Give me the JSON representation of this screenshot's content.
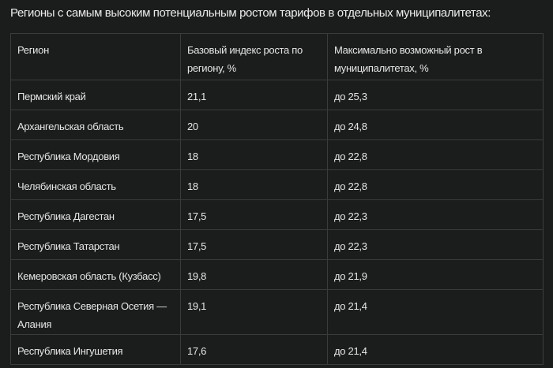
{
  "title": "Регионы с самым высоким потенциальным ростом тарифов в отдельных муниципалитетах:",
  "table": {
    "headers": [
      "Регион",
      "Базовый индекс роста по региону, %",
      "Максимально возможный рост в муниципалитетах, %"
    ],
    "rows": [
      [
        "Пермский край",
        "21,1",
        "до 25,3"
      ],
      [
        "Архангельская область",
        "20",
        "до 24,8"
      ],
      [
        "Республика Мордовия",
        "18",
        "до 22,8"
      ],
      [
        "Челябинская область",
        "18",
        "до 22,8"
      ],
      [
        "Республика Дагестан",
        "17,5",
        "до 22,3"
      ],
      [
        "Республика Татарстан",
        "17,5",
        "до 22,3"
      ],
      [
        "Кемеровская область (Кузбасс)",
        "19,8",
        "до 21,9"
      ],
      [
        "Республика Северная Осетия — Алания",
        "19,1",
        "до 21,4"
      ],
      [
        "Республика Ингушетия",
        "17,6",
        "до 21,4"
      ]
    ]
  }
}
